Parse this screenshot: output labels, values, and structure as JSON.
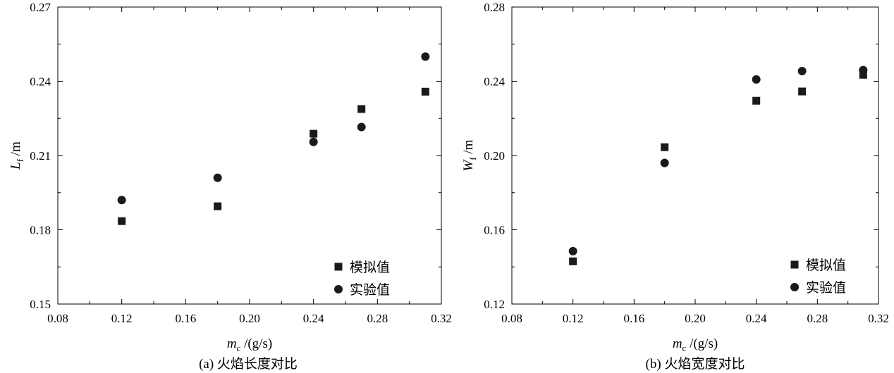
{
  "chart_data": [
    {
      "type": "scatter",
      "caption": "(a) 火焰长度对比",
      "ylabel_main": "L",
      "ylabel_sub": "f",
      "ylabel_unit": " /m",
      "xlabel_main": "m",
      "xlabel_sub": "c",
      "xlabel_unit": " /(g/s)",
      "xlim": [
        0.08,
        0.32
      ],
      "ylim": [
        0.15,
        0.27
      ],
      "xticks": [
        "0.08",
        "0.12",
        "0.16",
        "0.20",
        "0.24",
        "0.28",
        "0.32"
      ],
      "yticks": [
        "0.15",
        "0.18",
        "0.21",
        "0.24",
        "0.27"
      ],
      "legend_position": "bottom-right",
      "series": [
        {
          "name": "模拟值",
          "marker": "square",
          "x": [
            0.12,
            0.18,
            0.24,
            0.27,
            0.31
          ],
          "y": [
            0.1835,
            0.1895,
            0.2188,
            0.2288,
            0.2358
          ]
        },
        {
          "name": "实验值",
          "marker": "circle",
          "x": [
            0.12,
            0.18,
            0.24,
            0.27,
            0.31
          ],
          "y": [
            0.192,
            0.201,
            0.2155,
            0.2215,
            0.25
          ]
        }
      ]
    },
    {
      "type": "scatter",
      "caption": "(b) 火焰宽度对比",
      "ylabel_main": "W",
      "ylabel_sub": "f",
      "ylabel_unit": " /m",
      "xlabel_main": "m",
      "xlabel_sub": "c",
      "xlabel_unit": " /(g/s)",
      "xlim": [
        0.08,
        0.32
      ],
      "ylim": [
        0.12,
        0.28
      ],
      "xticks": [
        "0.08",
        "0.12",
        "0.16",
        "0.20",
        "0.24",
        "0.28",
        "0.32"
      ],
      "yticks": [
        "0.12",
        "0.16",
        "0.20",
        "0.24",
        "0.28"
      ],
      "legend_position": "bottom-right",
      "series": [
        {
          "name": "模拟值",
          "marker": "square",
          "x": [
            0.12,
            0.18,
            0.24,
            0.27,
            0.31
          ],
          "y": [
            0.143,
            0.2045,
            0.2295,
            0.2345,
            0.2435
          ]
        },
        {
          "name": "实验值",
          "marker": "circle",
          "x": [
            0.12,
            0.18,
            0.24,
            0.27,
            0.31
          ],
          "y": [
            0.1485,
            0.196,
            0.241,
            0.2455,
            0.246
          ]
        }
      ]
    }
  ]
}
